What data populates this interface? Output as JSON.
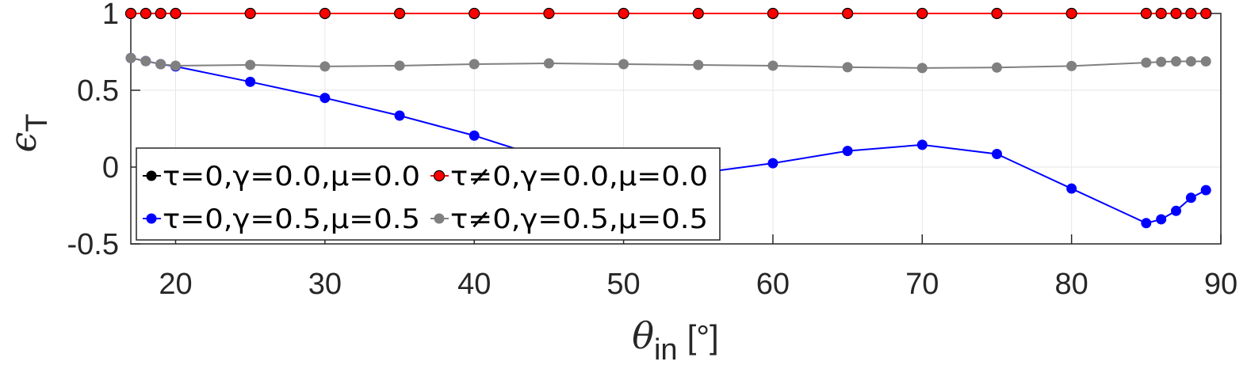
{
  "chart_data": {
    "type": "line",
    "xlabel": {
      "symbol": "θ",
      "subscript": "in",
      "unit": "[°]"
    },
    "ylabel": {
      "symbol": "ϵ",
      "subscript": "T"
    },
    "xlim": [
      17,
      90
    ],
    "ylim": [
      -0.5,
      1
    ],
    "xticks": [
      "20",
      "30",
      "40",
      "50",
      "60",
      "70",
      "80",
      "90"
    ],
    "xtick_values": [
      20,
      30,
      40,
      50,
      60,
      70,
      80,
      90
    ],
    "yticks": [
      "-0.5",
      "0",
      "0.5",
      "1"
    ],
    "ytick_values": [
      -0.5,
      0,
      0.5,
      1
    ],
    "grid": true,
    "legend_position": "lower-left",
    "series": [
      {
        "name": "τ=0,γ=0.0,μ=0.0",
        "color": "#000000",
        "x": [
          17,
          18,
          19,
          20,
          25,
          30,
          35,
          40,
          45,
          50,
          55,
          60,
          65,
          70,
          75,
          80,
          85,
          86,
          87,
          88,
          89
        ],
        "y": [
          1,
          1,
          1,
          1,
          1,
          1,
          1,
          1,
          1,
          1,
          1,
          1,
          1,
          1,
          1,
          1,
          1,
          1,
          1,
          1,
          1
        ]
      },
      {
        "name": "τ≠0,γ=0.0,μ=0.0",
        "color": "#ff0000",
        "x": [
          17,
          18,
          19,
          20,
          25,
          30,
          35,
          40,
          45,
          50,
          55,
          60,
          65,
          70,
          75,
          80,
          85,
          86,
          87,
          88,
          89
        ],
        "y": [
          1,
          1,
          1,
          1,
          1,
          1,
          1,
          1,
          1,
          1,
          1,
          1,
          1,
          1,
          1,
          1,
          1,
          1,
          1,
          1,
          1
        ]
      },
      {
        "name": "τ=0,γ=0.5,μ=0.5",
        "color": "#0000ff",
        "x": [
          17,
          18,
          19,
          20,
          25,
          30,
          35,
          40,
          45,
          50,
          55,
          60,
          65,
          70,
          75,
          80,
          85,
          86,
          87,
          88,
          89
        ],
        "y": [
          0.71,
          0.69,
          0.67,
          0.655,
          0.555,
          0.45,
          0.335,
          0.205,
          0.05,
          -0.05,
          -0.04,
          0.025,
          0.105,
          0.145,
          0.085,
          -0.14,
          -0.365,
          -0.34,
          -0.285,
          -0.2,
          -0.15
        ]
      },
      {
        "name": "τ≠0,γ=0.5,μ=0.5",
        "color": "#808080",
        "x": [
          17,
          18,
          19,
          20,
          25,
          30,
          35,
          40,
          45,
          50,
          55,
          60,
          65,
          70,
          75,
          80,
          85,
          86,
          87,
          88,
          89
        ],
        "y": [
          0.71,
          0.69,
          0.67,
          0.66,
          0.665,
          0.655,
          0.66,
          0.67,
          0.675,
          0.67,
          0.665,
          0.66,
          0.65,
          0.645,
          0.648,
          0.658,
          0.68,
          0.685,
          0.688,
          0.688,
          0.688
        ]
      }
    ]
  }
}
